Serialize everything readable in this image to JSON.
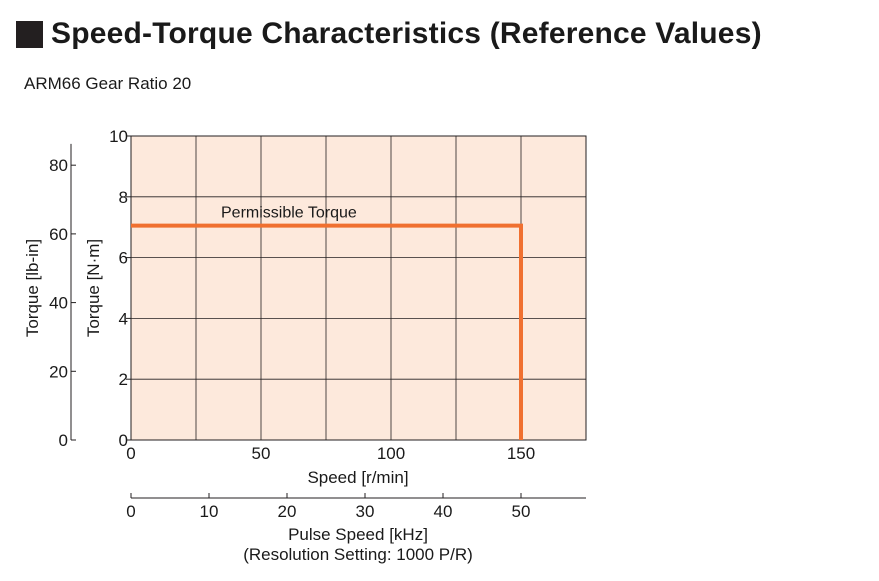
{
  "header": {
    "title": "Speed-Torque Characteristics (Reference Values)",
    "subtitle": "ARM66 Gear Ratio 20"
  },
  "chart_data": {
    "type": "line",
    "title": "",
    "xlabel": "Speed [r/min]",
    "xlim": [
      0,
      175
    ],
    "x_ticks": [
      0,
      50,
      100,
      150
    ],
    "x_grid_step": 25,
    "ylabel": "Torque [N·m]",
    "ylim": [
      0,
      10
    ],
    "y_ticks": [
      0,
      2,
      4,
      6,
      8,
      10
    ],
    "grid": true,
    "plot_background": "#fde9dc",
    "series": [
      {
        "name": "Permissible Torque",
        "color": "#f07030",
        "points": [
          [
            0,
            7.05
          ],
          [
            150,
            7.05
          ],
          [
            150,
            0
          ]
        ]
      }
    ],
    "secondary_y_axis": {
      "label": "Torque [lb-in]",
      "ticks": [
        0,
        20,
        40,
        60,
        80
      ],
      "n_m_per_unit": 0.113
    },
    "secondary_x_axis": {
      "label": "Pulse Speed [kHz]",
      "label_line2": "(Resolution Setting: 1000 P/R)",
      "ticks": [
        0,
        10,
        20,
        30,
        40,
        50
      ],
      "rpm_per_unit": 3
    }
  }
}
